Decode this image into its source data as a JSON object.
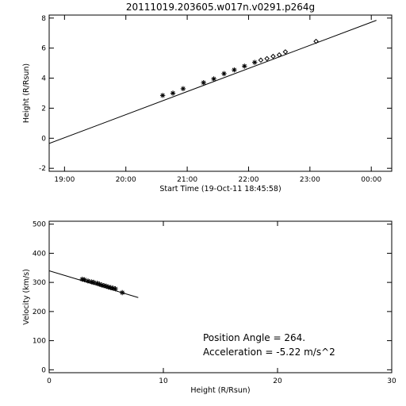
{
  "chart_data": [
    {
      "type": "scatter",
      "title": "20111019.203605.w017n.v0291.p264g",
      "xlabel": "Start Time (19-Oct-11 18:45:58)",
      "ylabel": "Height (R/Rsun)",
      "x_ticks": [
        "19:00",
        "20:00",
        "21:00",
        "22:00",
        "23:00",
        "00:00"
      ],
      "y_ticks": [
        -2,
        0,
        2,
        4,
        6,
        8
      ],
      "xlim": [
        "18:45",
        "00:20"
      ],
      "ylim": [
        -2.2,
        8.2
      ],
      "fit_line": {
        "x": [
          "18:45",
          "00:05"
        ],
        "y": [
          -0.35,
          7.85
        ]
      },
      "series": [
        {
          "marker": "asterisk",
          "x": [
            "20:36",
            "20:46",
            "20:56",
            "21:16",
            "21:26",
            "21:36",
            "21:46",
            "21:56",
            "22:06"
          ],
          "y": [
            2.85,
            3.0,
            3.3,
            3.7,
            3.95,
            4.3,
            4.55,
            4.8,
            5.05
          ]
        },
        {
          "marker": "diamond",
          "x": [
            "22:12",
            "22:18",
            "22:24",
            "22:30",
            "22:36",
            "23:06"
          ],
          "y": [
            5.2,
            5.3,
            5.45,
            5.55,
            5.75,
            6.45
          ]
        }
      ]
    },
    {
      "type": "scatter",
      "xlabel": "Height (R/Rsun)",
      "ylabel": "Velocity (km/s)",
      "x_ticks": [
        0,
        10,
        20,
        30
      ],
      "y_ticks": [
        0,
        100,
        200,
        300,
        400,
        500
      ],
      "xlim": [
        0,
        30
      ],
      "ylim": [
        -10,
        510
      ],
      "fit_line": {
        "x": [
          0,
          7.8
        ],
        "y": [
          340,
          248
        ]
      },
      "series": [
        {
          "marker": "asterisk",
          "x": [
            2.9,
            3.1,
            3.4,
            3.7,
            3.9,
            4.2,
            4.4,
            4.6,
            4.8,
            5.0,
            5.2,
            5.4,
            5.6,
            5.8,
            6.4
          ],
          "y": [
            311,
            309,
            305,
            302,
            300,
            297,
            294,
            291,
            289,
            287,
            284,
            282,
            280,
            278,
            265
          ]
        }
      ],
      "annotations": [
        "Position Angle =  264.",
        "Acceleration =   -5.22 m/s^2"
      ]
    }
  ]
}
